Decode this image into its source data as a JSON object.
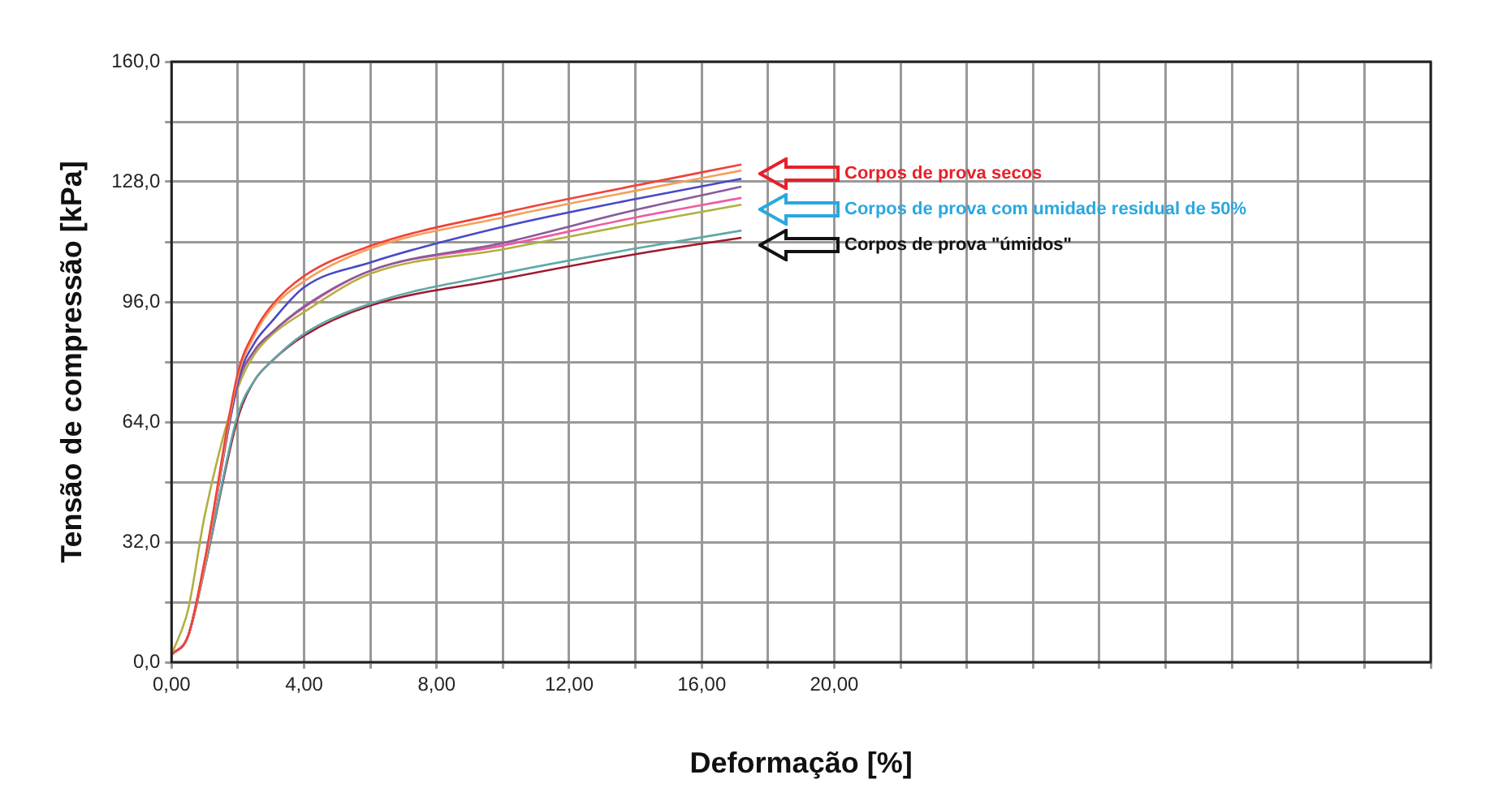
{
  "chart_data": {
    "type": "line",
    "xlabel": "Deformação [%]",
    "ylabel": "Tensão de compressão [kPa]",
    "xlim": [
      0,
      38
    ],
    "ylim": [
      0,
      160
    ],
    "xticks": [
      {
        "value": 0,
        "label": "0,00"
      },
      {
        "value": 2,
        "label": null
      },
      {
        "value": 4,
        "label": "4,00"
      },
      {
        "value": 6,
        "label": null
      },
      {
        "value": 8,
        "label": "8,00"
      },
      {
        "value": 10,
        "label": null
      },
      {
        "value": 12,
        "label": "12,00"
      },
      {
        "value": 14,
        "label": null
      },
      {
        "value": 16,
        "label": "16,00"
      },
      {
        "value": 18,
        "label": null
      },
      {
        "value": 20,
        "label": "20,00"
      },
      {
        "value": 22,
        "label": null
      },
      {
        "value": 24,
        "label": null
      },
      {
        "value": 26,
        "label": null
      },
      {
        "value": 28,
        "label": null
      },
      {
        "value": 30,
        "label": null
      },
      {
        "value": 32,
        "label": null
      },
      {
        "value": 34,
        "label": null
      },
      {
        "value": 36,
        "label": null
      },
      {
        "value": 38,
        "label": null
      }
    ],
    "yticks": [
      {
        "value": 0,
        "label": "0,0"
      },
      {
        "value": 16,
        "label": null
      },
      {
        "value": 32,
        "label": "32,0"
      },
      {
        "value": 48,
        "label": null
      },
      {
        "value": 64,
        "label": "64,0"
      },
      {
        "value": 80,
        "label": null
      },
      {
        "value": 96,
        "label": "96,0"
      },
      {
        "value": 112,
        "label": null
      },
      {
        "value": 128,
        "label": "128,0"
      },
      {
        "value": 144,
        "label": null
      },
      {
        "value": 160,
        "label": "160,0"
      }
    ],
    "x": [
      0,
      0.5,
      1,
      2,
      2.5,
      3,
      4,
      6,
      10,
      14,
      17.2
    ],
    "series": [
      {
        "color": "#f0433a",
        "values": [
          2,
          7,
          27,
          77,
          88,
          94.8,
          102.9,
          110.9,
          119.7,
          127,
          132.6
        ]
      },
      {
        "color": "#f5a05a",
        "values": [
          2,
          7,
          26,
          76,
          87,
          94,
          101.5,
          110.2,
          118.5,
          125.6,
          131
        ]
      },
      {
        "color": "#4a48c8",
        "values": [
          2,
          7,
          26,
          75,
          85,
          90.5,
          99.9,
          106.5,
          116,
          123.4,
          128.8
        ]
      },
      {
        "color": "#8a5a9a",
        "values": [
          2,
          7,
          26,
          74,
          83,
          87.6,
          94.8,
          104.3,
          111.7,
          120.5,
          126.7
        ]
      },
      {
        "color": "#f05aa0",
        "values": [
          2,
          7,
          27,
          74,
          83,
          87.6,
          94.5,
          104.3,
          111,
          118.5,
          123.7
        ]
      },
      {
        "color": "#b0b040",
        "values": [
          2,
          14,
          39,
          73,
          82,
          87,
          93.3,
          103.5,
          110,
          116.8,
          121.9
        ]
      },
      {
        "color": "#60a8a8",
        "values": [
          2,
          7,
          25,
          66,
          75,
          80,
          87.5,
          95.5,
          103.6,
          110.2,
          115
        ]
      },
      {
        "color": "#a01830",
        "values": [
          2,
          7,
          25,
          65,
          75,
          80,
          87,
          95,
          102.1,
          108.7,
          113.1
        ]
      }
    ],
    "grid": true,
    "legend": false,
    "marker": "none",
    "line_style": "solid",
    "annotations": [
      "Corpos de prova secos",
      "Corpos de prova com umidade residual de 50%",
      "Corpos de prova \"úmidos\""
    ]
  }
}
